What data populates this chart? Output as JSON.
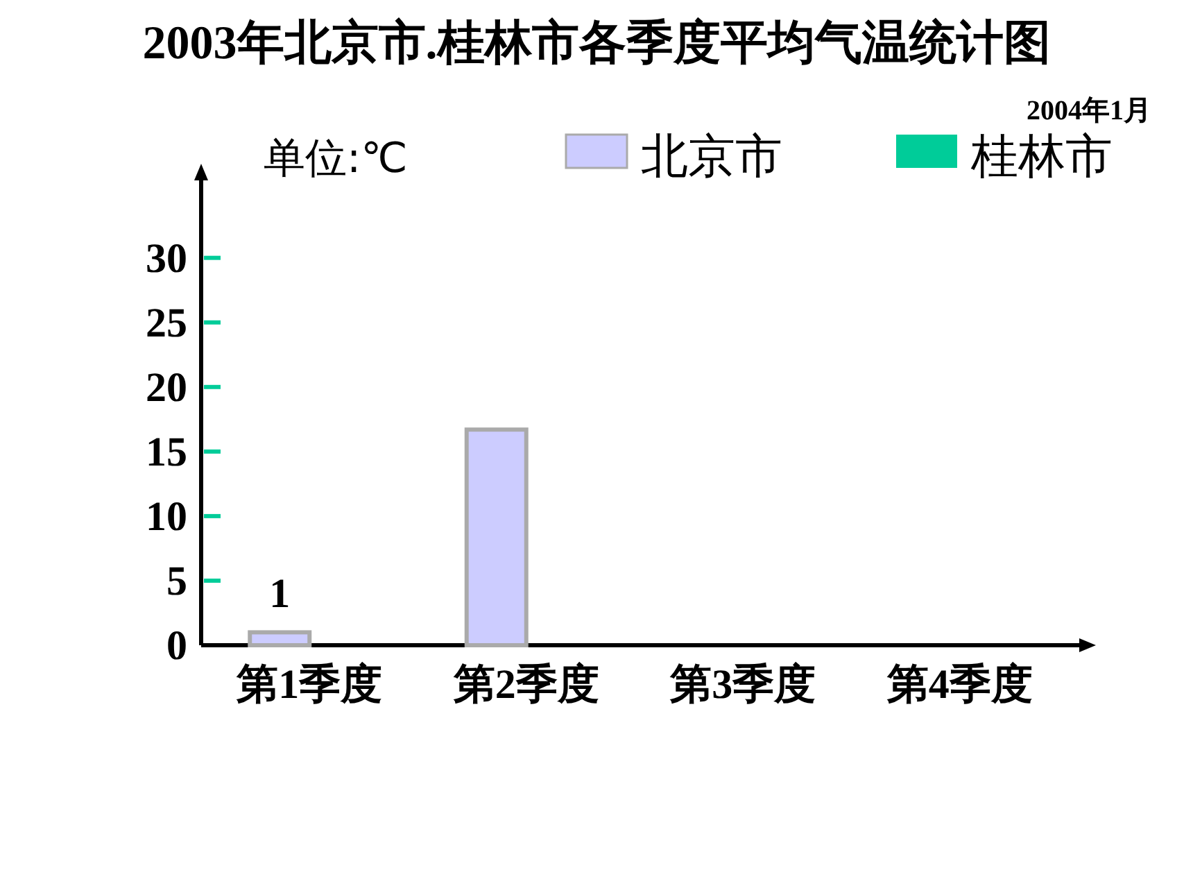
{
  "chart_data": {
    "type": "bar",
    "title": "2003年北京市.桂林市各季度平均气温统计图",
    "ylabel": "单位:℃",
    "annotations": [
      "2004年1月"
    ],
    "categories": [
      "第1季度",
      "第2季度",
      "第3季度",
      "第4季度"
    ],
    "series": [
      {
        "name": "北京市",
        "color": "#ccccff",
        "values": [
          1,
          16.7,
          null,
          null
        ],
        "value_labels": [
          "1",
          null,
          null,
          null
        ]
      },
      {
        "name": "桂林市",
        "color": "#00cc99",
        "values": [
          null,
          null,
          null,
          null
        ]
      }
    ],
    "ylim": [
      0,
      36
    ],
    "yticks": [
      0,
      5,
      10,
      15,
      20,
      25,
      30
    ],
    "legend": "top",
    "grid": false
  }
}
